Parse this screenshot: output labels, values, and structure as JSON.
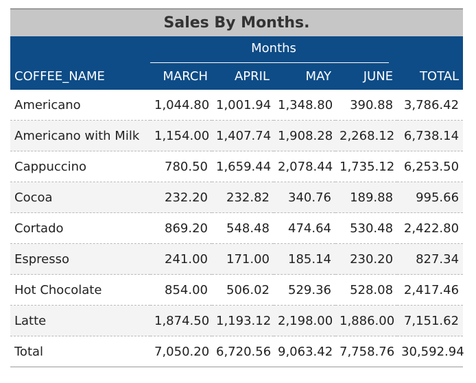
{
  "report": {
    "title": "Sales By Months.",
    "group_label": "Months",
    "columns": {
      "name": "COFFEE_NAME",
      "months": [
        "MARCH",
        "APRIL",
        "MAY",
        "JUNE"
      ],
      "total": "TOTAL"
    },
    "rows": [
      {
        "name": "Americano",
        "values": [
          "1,044.80",
          "1,001.94",
          "1,348.80",
          "390.88"
        ],
        "total": "3,786.42"
      },
      {
        "name": "Americano with Milk",
        "values": [
          "1,154.00",
          "1,407.74",
          "1,908.28",
          "2,268.12"
        ],
        "total": "6,738.14"
      },
      {
        "name": "Cappuccino",
        "values": [
          "780.50",
          "1,659.44",
          "2,078.44",
          "1,735.12"
        ],
        "total": "6,253.50"
      },
      {
        "name": "Cocoa",
        "values": [
          "232.20",
          "232.82",
          "340.76",
          "189.88"
        ],
        "total": "995.66"
      },
      {
        "name": "Cortado",
        "values": [
          "869.20",
          "548.48",
          "474.64",
          "530.48"
        ],
        "total": "2,422.80"
      },
      {
        "name": "Espresso",
        "values": [
          "241.00",
          "171.00",
          "185.14",
          "230.20"
        ],
        "total": "827.34"
      },
      {
        "name": "Hot Chocolate",
        "values": [
          "854.00",
          "506.02",
          "529.36",
          "528.08"
        ],
        "total": "2,417.46"
      },
      {
        "name": "Latte",
        "values": [
          "1,874.50",
          "1,193.12",
          "2,198.00",
          "1,886.00"
        ],
        "total": "7,151.62"
      },
      {
        "name": "Total",
        "values": [
          "7,050.20",
          "6,720.56",
          "9,063.42",
          "7,758.76"
        ],
        "total": "30,592.94"
      }
    ],
    "colors": {
      "header_bg": "#0e4c87",
      "title_bg": "#c6c6c6",
      "stripe_bg": "#f4f4f4"
    }
  }
}
